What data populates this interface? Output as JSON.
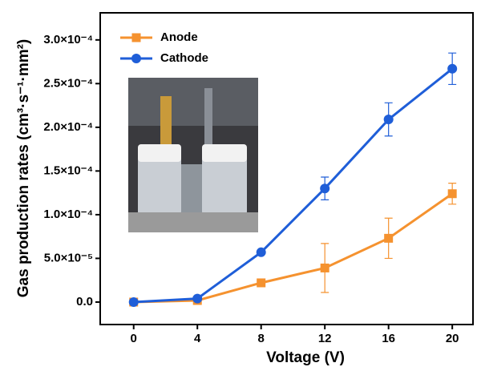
{
  "chart_data": {
    "type": "line",
    "x_label": "Voltage (V)",
    "y_label": "Gas production rates (cm³·s⁻¹·mm²)",
    "x": [
      0,
      4,
      8,
      12,
      16,
      20
    ],
    "series": [
      {
        "name": "Anode",
        "color": "#f5922f",
        "marker": "square",
        "values": [
          0,
          1.8e-06,
          2.2e-05,
          3.9e-05,
          7.3e-05,
          0.000124
        ],
        "errors": [
          0,
          0,
          1e-06,
          2.8e-05,
          2.3e-05,
          1.2e-05
        ]
      },
      {
        "name": "Cathode",
        "color": "#1f5ed8",
        "marker": "circle",
        "values": [
          0,
          4e-06,
          5.7e-05,
          0.00013,
          0.000209,
          0.000267
        ],
        "errors": [
          0,
          0,
          0,
          1.3e-05,
          1.9e-05,
          1.8e-05
        ]
      }
    ],
    "xlim": [
      -2.1,
      21.3
    ],
    "ylim": [
      -2.57e-05,
      0.000331
    ],
    "xticks": [
      0,
      4,
      8,
      12,
      16,
      20
    ],
    "yticks": [
      {
        "value": 0,
        "label": "0.0"
      },
      {
        "value": 5e-05,
        "label": "5.0×10⁻⁵"
      },
      {
        "value": 0.0001,
        "label": "1.0×10⁻⁴"
      },
      {
        "value": 0.00015,
        "label": "1.5×10⁻⁴"
      },
      {
        "value": 0.0002,
        "label": "2.0×10⁻⁴"
      },
      {
        "value": 0.00025,
        "label": "2.5×10⁻⁴"
      },
      {
        "value": 0.0003,
        "label": "3.0×10⁻⁴"
      }
    ],
    "legend": "upper-left"
  }
}
